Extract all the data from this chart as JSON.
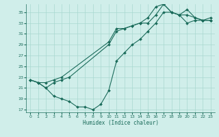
{
  "xlabel": "Humidex (Indice chaleur)",
  "line_color": "#1a6b5a",
  "bg_color": "#d0eeea",
  "grid_color": "#a8d8d0",
  "line1_x": [
    0,
    1,
    2,
    3,
    4,
    10,
    11,
    12,
    13,
    14,
    15,
    16,
    17,
    18,
    19,
    20,
    21,
    22,
    23
  ],
  "line1_y": [
    22.5,
    22,
    22,
    22.5,
    23,
    29.5,
    32,
    32,
    32.5,
    33,
    34,
    36,
    36.5,
    35,
    34.5,
    34.5,
    34,
    33.5,
    33.5
  ],
  "line2_x": [
    0,
    1,
    2,
    3,
    4,
    5,
    10,
    11,
    12,
    13,
    14,
    15,
    16,
    17,
    18,
    19,
    20,
    21,
    22,
    23
  ],
  "line2_y": [
    22.5,
    22,
    21,
    22,
    22.5,
    23,
    29,
    31.5,
    32,
    32.5,
    33,
    33,
    34.5,
    36.5,
    35,
    34.5,
    35.5,
    34,
    33.5,
    34
  ],
  "line3_x": [
    0,
    1,
    2,
    3,
    4,
    5,
    6,
    7,
    8,
    9,
    10,
    11,
    12,
    13,
    14,
    15,
    16,
    17,
    18,
    19,
    20,
    21,
    22,
    23
  ],
  "line3_y": [
    22.5,
    22,
    21,
    19.5,
    19,
    18.5,
    17.5,
    17.5,
    17,
    18,
    20.5,
    26,
    27.5,
    29,
    30,
    31.5,
    33,
    35,
    35,
    34.5,
    33,
    33.5,
    33.5,
    33.5
  ],
  "xlim": [
    -0.5,
    23.5
  ],
  "ylim": [
    16.5,
    36.5
  ],
  "yticks": [
    17,
    19,
    21,
    23,
    25,
    27,
    29,
    31,
    33,
    35
  ],
  "xticks": [
    0,
    1,
    2,
    3,
    4,
    5,
    6,
    7,
    8,
    9,
    10,
    11,
    12,
    13,
    14,
    15,
    16,
    17,
    18,
    19,
    20,
    21,
    22,
    23
  ]
}
